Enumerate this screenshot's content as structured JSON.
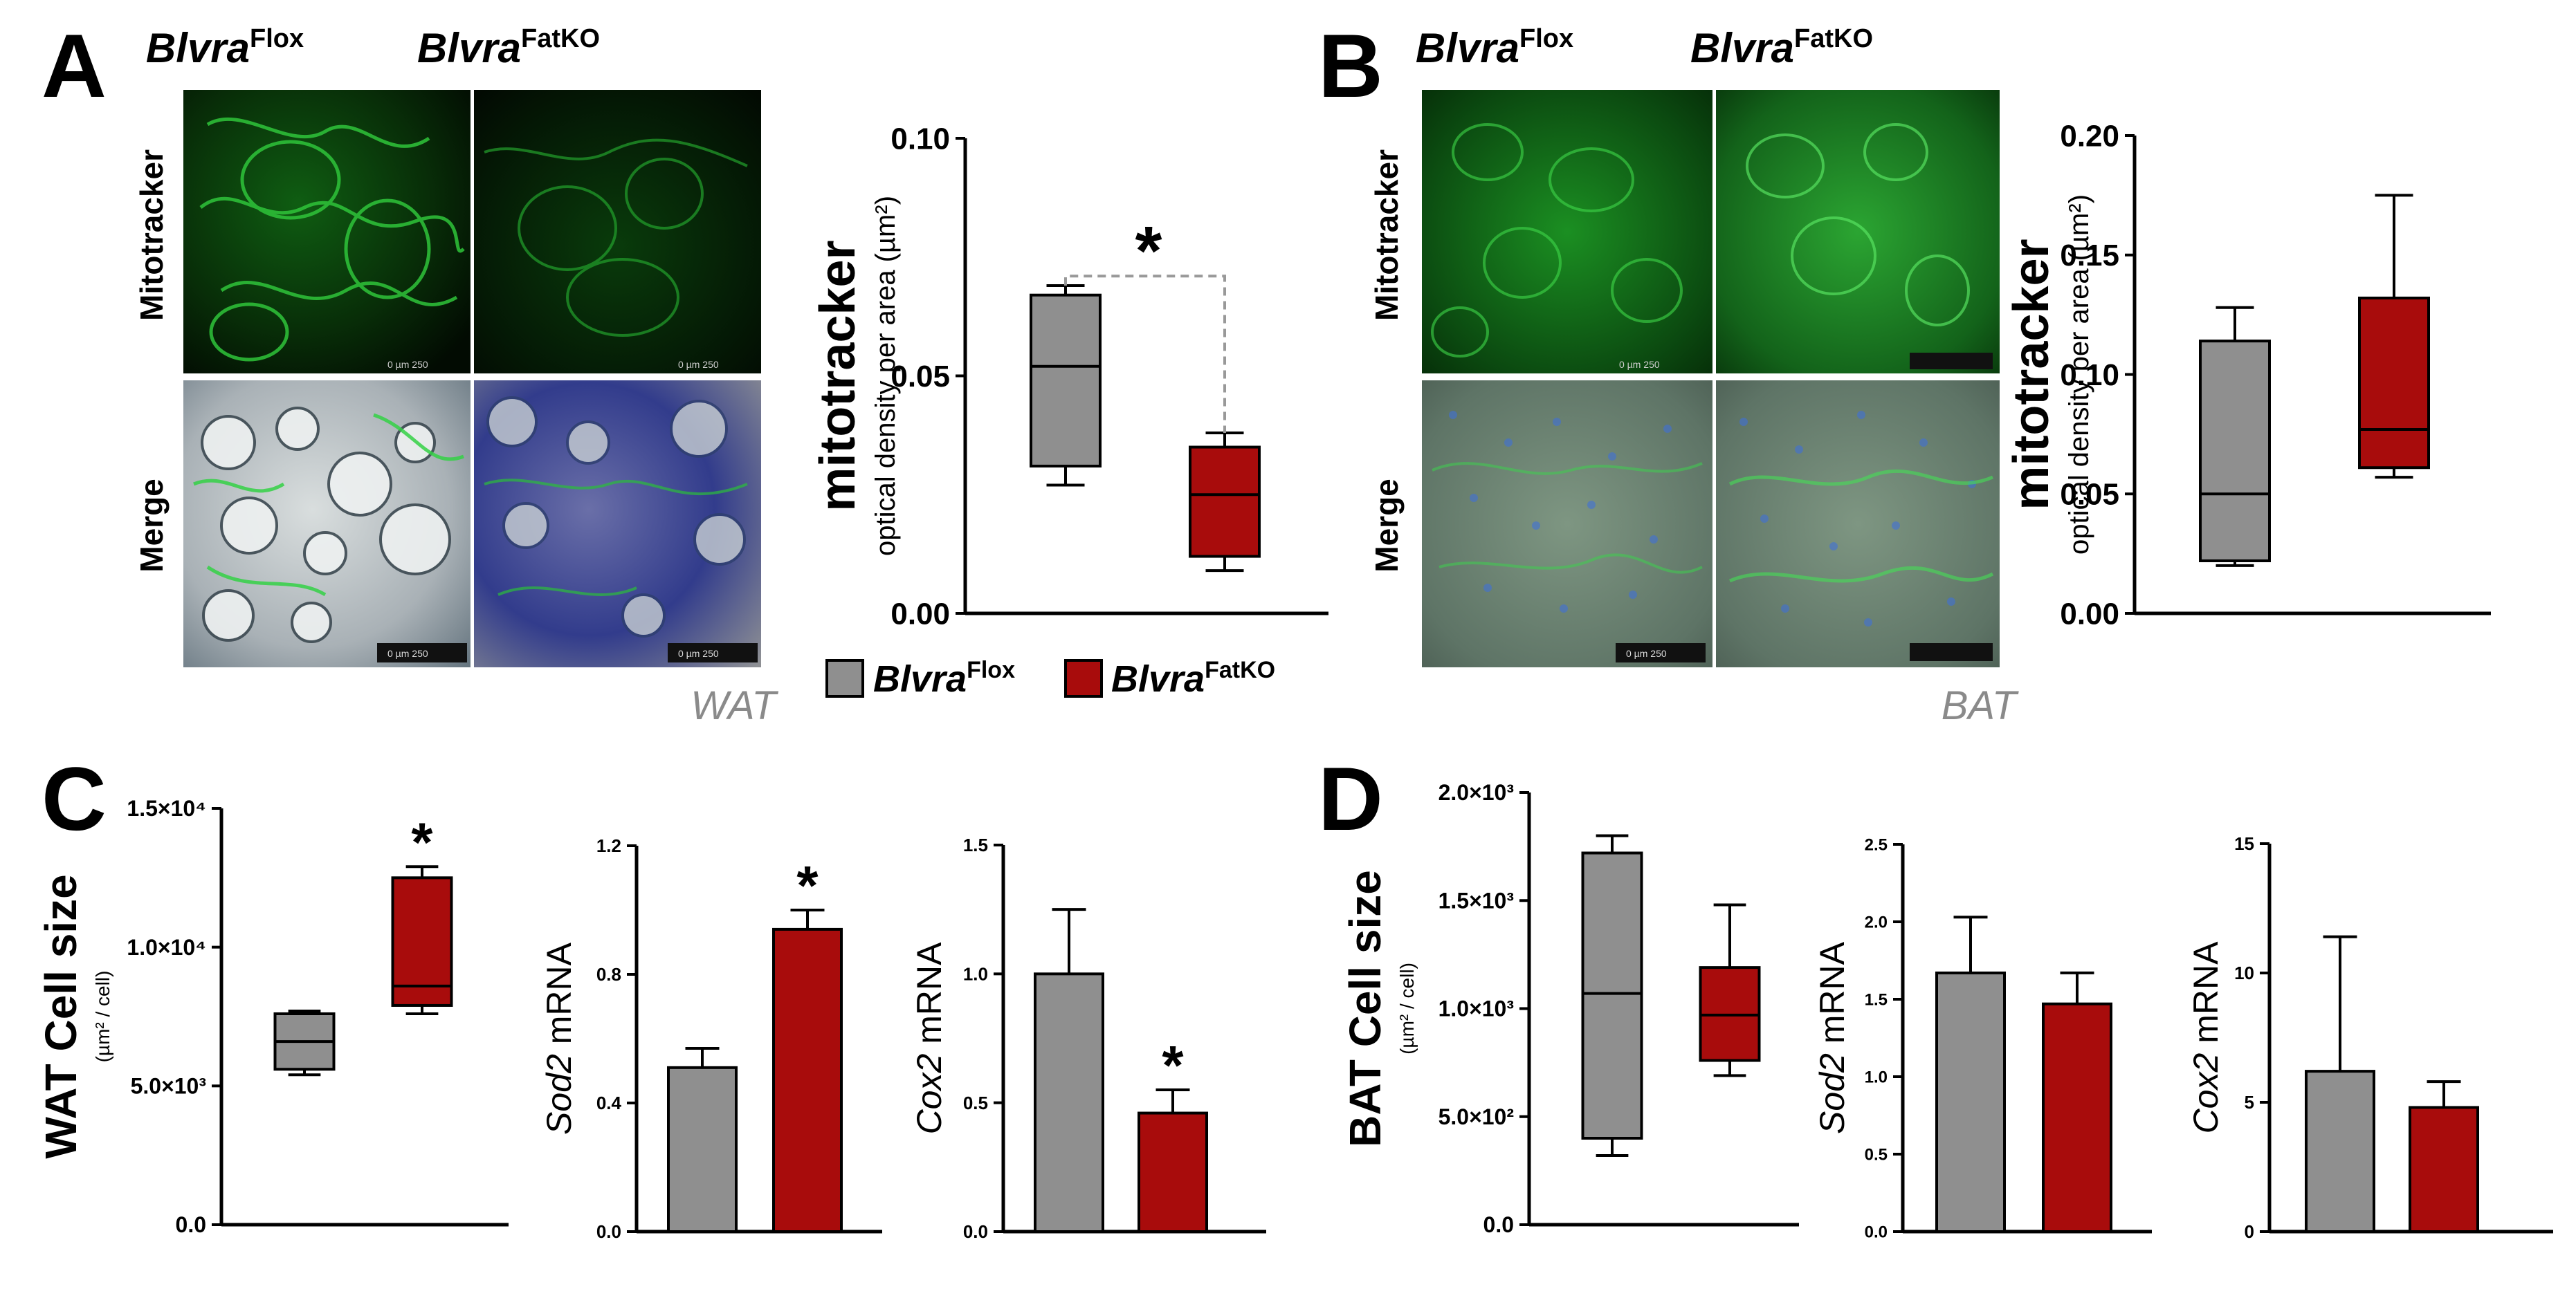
{
  "colors": {
    "flox": "#8f8f8f",
    "fatko": "#a80c0c",
    "axis": "#000000",
    "muted": "#8a8a8a"
  },
  "panels": {
    "A": "A",
    "B": "B",
    "C": "C",
    "D": "D"
  },
  "genotype": {
    "base": "Blvra",
    "flox_sup": "Flox",
    "fatko_sup": "FatKO"
  },
  "micrographs": {
    "row_mito": "Mitotracker",
    "row_merge": "Merge",
    "scale_text": "0    µm    250",
    "tissue_wat": "WAT",
    "tissue_bat": "BAT"
  },
  "legend": {
    "icon": "legend-swatch"
  },
  "sig_star": "*",
  "chart_data": [
    {
      "id": "A-mito",
      "type": "box",
      "ylabel_main": "mitotracker",
      "ylabel_sub": "optical density per area (µm²)",
      "ylim": [
        0,
        0.1
      ],
      "ticks": [
        "0.00",
        "0.05",
        "0.10"
      ],
      "tick_vals": [
        0,
        0.05,
        0.1
      ],
      "groups": [
        {
          "group": "BlvraFlox",
          "min": 0.027,
          "q1": 0.031,
          "median": 0.052,
          "q3": 0.067,
          "max": 0.069
        },
        {
          "group": "BlvraFatKO",
          "min": 0.009,
          "q1": 0.012,
          "median": 0.025,
          "q3": 0.035,
          "max": 0.038
        }
      ],
      "significant": true
    },
    {
      "id": "B-mito",
      "type": "box",
      "ylabel_main": "mitotracker",
      "ylabel_sub": "optical density per area (µm²)",
      "ylim": [
        0,
        0.2
      ],
      "ticks": [
        "0.00",
        "0.05",
        "0.10",
        "0.15",
        "0.20"
      ],
      "tick_vals": [
        0,
        0.05,
        0.1,
        0.15,
        0.2
      ],
      "groups": [
        {
          "group": "BlvraFlox",
          "min": 0.02,
          "q1": 0.022,
          "median": 0.05,
          "q3": 0.114,
          "max": 0.128
        },
        {
          "group": "BlvraFatKO",
          "min": 0.057,
          "q1": 0.061,
          "median": 0.077,
          "q3": 0.132,
          "max": 0.175
        }
      ],
      "significant": false
    },
    {
      "id": "C-wat-size",
      "type": "box",
      "ylabel_main": "WAT Cell size",
      "ylabel_sub": "(µm² / cell)",
      "ylim": [
        0,
        15000
      ],
      "ticks": [
        "0.0",
        "5.0×10³",
        "1.0×10⁴",
        "1.5×10⁴"
      ],
      "tick_vals": [
        0,
        5000,
        10000,
        15000
      ],
      "groups": [
        {
          "group": "BlvraFlox",
          "min": 5400,
          "q1": 5600,
          "median": 6600,
          "q3": 7600,
          "max": 7700
        },
        {
          "group": "BlvraFatKO",
          "min": 7600,
          "q1": 7900,
          "median": 8600,
          "q3": 12500,
          "max": 12900
        }
      ],
      "significant": true
    },
    {
      "id": "C-sod2",
      "type": "bar",
      "ylabel_gene": "Sod2",
      "ylabel_rest": " mRNA",
      "ylim": [
        0,
        1.2
      ],
      "ticks": [
        "0.0",
        "0.4",
        "0.8",
        "1.2"
      ],
      "tick_vals": [
        0,
        0.4,
        0.8,
        1.2
      ],
      "groups": [
        {
          "group": "BlvraFlox",
          "value": 0.51,
          "error": 0.06
        },
        {
          "group": "BlvraFatKO",
          "value": 0.94,
          "error": 0.06
        }
      ],
      "significant": true
    },
    {
      "id": "C-cox2",
      "type": "bar",
      "ylabel_gene": "Cox2",
      "ylabel_rest": " mRNA",
      "ylim": [
        0,
        1.5
      ],
      "ticks": [
        "0.0",
        "0.5",
        "1.0",
        "1.5"
      ],
      "tick_vals": [
        0,
        0.5,
        1.0,
        1.5
      ],
      "groups": [
        {
          "group": "BlvraFlox",
          "value": 1.0,
          "error": 0.25
        },
        {
          "group": "BlvraFatKO",
          "value": 0.46,
          "error": 0.09
        }
      ],
      "significant": true
    },
    {
      "id": "D-bat-size",
      "type": "box",
      "ylabel_main": "BAT Cell size",
      "ylabel_sub": "(µm² / cell)",
      "ylim": [
        0,
        2000
      ],
      "ticks": [
        "0.0",
        "5.0×10²",
        "1.0×10³",
        "1.5×10³",
        "2.0×10³"
      ],
      "tick_vals": [
        0,
        500,
        1000,
        1500,
        2000
      ],
      "groups": [
        {
          "group": "BlvraFlox",
          "min": 320,
          "q1": 400,
          "median": 1070,
          "q3": 1720,
          "max": 1800
        },
        {
          "group": "BlvraFatKO",
          "min": 690,
          "q1": 760,
          "median": 970,
          "q3": 1190,
          "max": 1480
        }
      ],
      "significant": false
    },
    {
      "id": "D-sod2",
      "type": "bar",
      "ylabel_gene": "Sod2",
      "ylabel_rest": " mRNA",
      "ylim": [
        0,
        2.5
      ],
      "ticks": [
        "0.0",
        "0.5",
        "1.0",
        "1.5",
        "2.0",
        "2.5"
      ],
      "tick_vals": [
        0,
        0.5,
        1.0,
        1.5,
        2.0,
        2.5
      ],
      "groups": [
        {
          "group": "BlvraFlox",
          "value": 1.67,
          "error": 0.36
        },
        {
          "group": "BlvraFatKO",
          "value": 1.47,
          "error": 0.2
        }
      ],
      "significant": false
    },
    {
      "id": "D-cox2",
      "type": "bar",
      "ylabel_gene": "Cox2",
      "ylabel_rest": " mRNA",
      "ylim": [
        0,
        15
      ],
      "ticks": [
        "0",
        "5",
        "10",
        "15"
      ],
      "tick_vals": [
        0,
        5,
        10,
        15
      ],
      "groups": [
        {
          "group": "BlvraFlox",
          "value": 6.2,
          "error": 5.2
        },
        {
          "group": "BlvraFatKO",
          "value": 4.8,
          "error": 1.0
        }
      ],
      "significant": false
    }
  ]
}
